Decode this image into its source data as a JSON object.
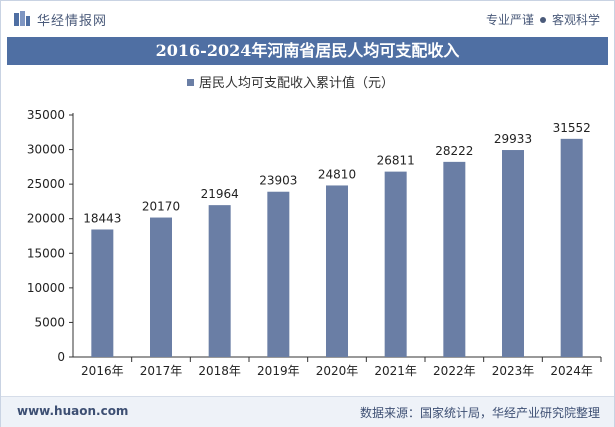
{
  "header": {
    "brand": "华经情报网",
    "slogan_left": "专业严谨",
    "slogan_right": "客观科学"
  },
  "chart_data": {
    "type": "bar",
    "title": "2016-2024年河南省居民人均可支配收入",
    "categories": [
      "2016年",
      "2017年",
      "2018年",
      "2019年",
      "2020年",
      "2021年",
      "2022年",
      "2023年",
      "2024年"
    ],
    "series": [
      {
        "name": "居民人均可支配收入累计值（元）",
        "values": [
          18443,
          20170,
          21964,
          23903,
          24810,
          26811,
          28222,
          29933,
          31552
        ]
      }
    ],
    "ylim": [
      0,
      35000
    ],
    "yticks": [
      0,
      5000,
      10000,
      15000,
      20000,
      25000,
      30000,
      35000
    ],
    "grid": false,
    "legend": "top-center",
    "bar_color": "#6a7ea5"
  },
  "footer": {
    "url": "www.huaon.com",
    "source": "数据来源：国家统计局，华经产业研究院整理"
  }
}
